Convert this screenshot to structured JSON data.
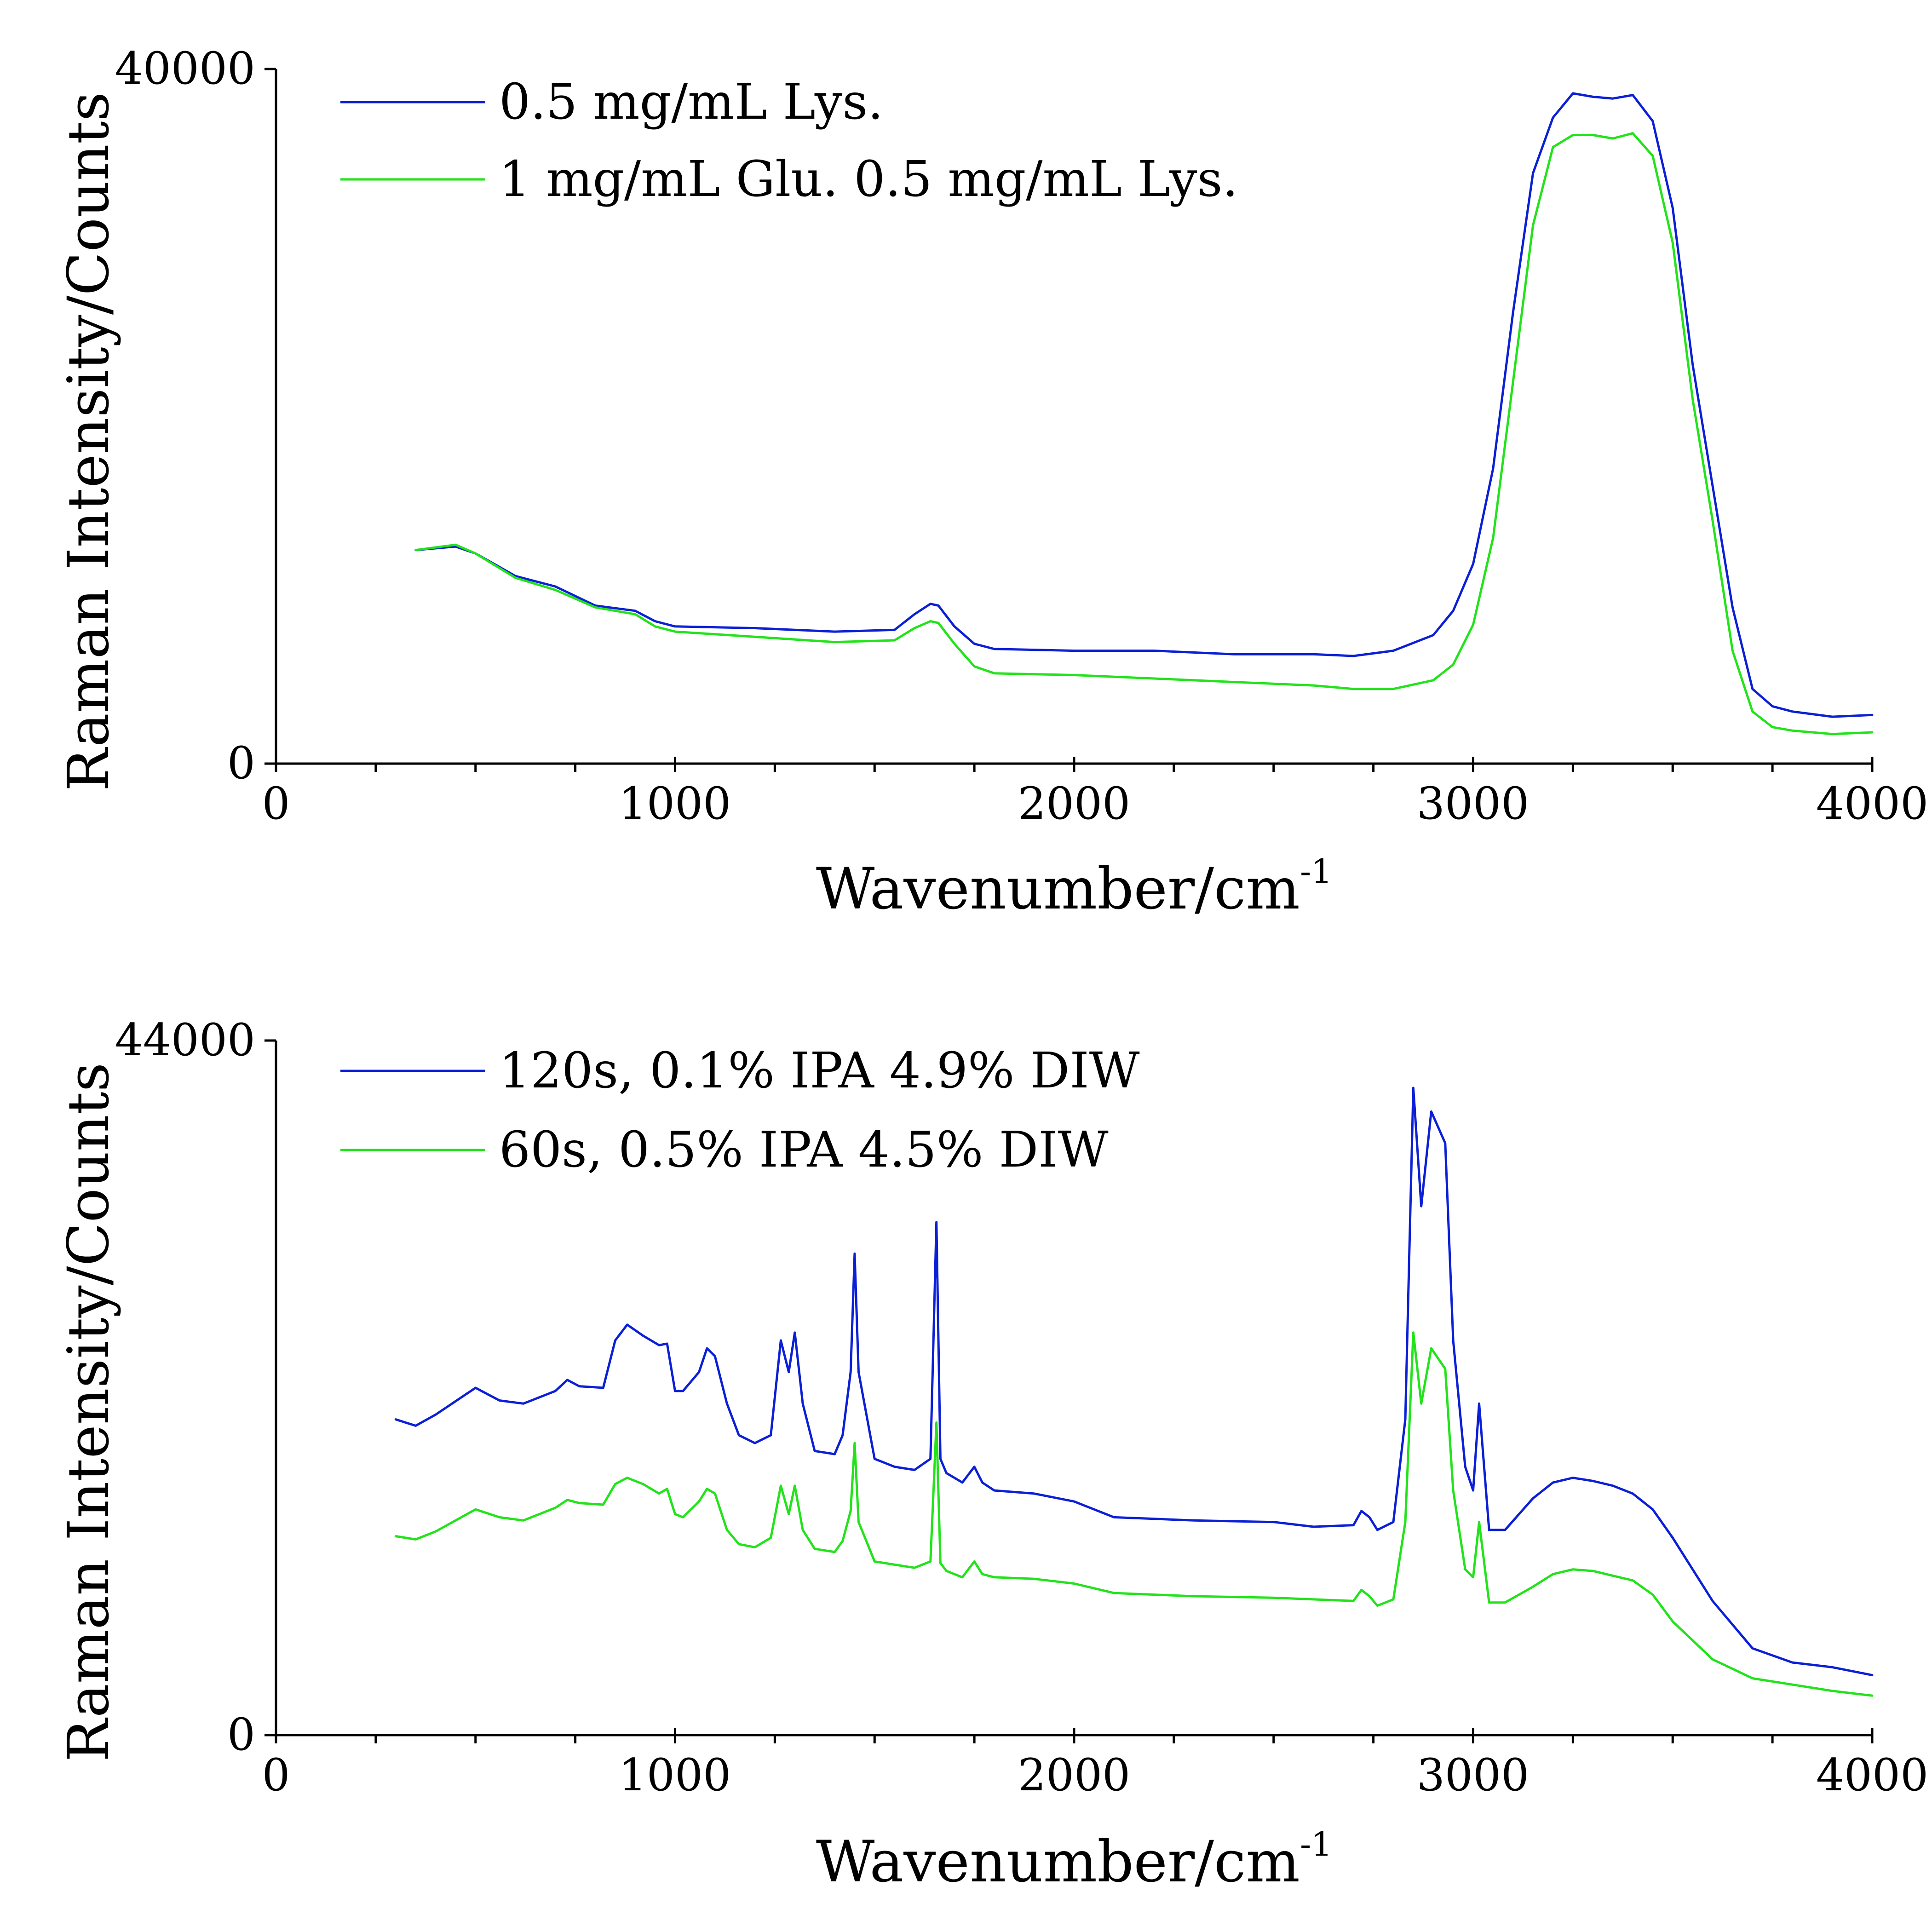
{
  "colors": {
    "series_1": "#0b1fd6",
    "series_2": "#22e31a",
    "axis": "#000000"
  },
  "chart_data": [
    {
      "type": "line",
      "title": "",
      "xlabel": "Wavenumber/cm",
      "xlabel_sup": "-1",
      "ylabel": "Raman Intensity/Counts",
      "xlim": [
        0,
        4000
      ],
      "ylim": [
        0,
        40000
      ],
      "x_ticks": [
        0,
        1000,
        2000,
        3000,
        4000
      ],
      "x_tick_labels": [
        "0",
        "1000",
        "2000",
        "3000",
        "4000"
      ],
      "y_ticks": [
        0,
        40000
      ],
      "y_tick_labels": [
        "0",
        "40000"
      ],
      "legend_position": "top-left",
      "series": [
        {
          "name": "0.5 mg/mL Lys.",
          "color": "#0b1fd6",
          "x": [
            350,
            450,
            500,
            600,
            700,
            800,
            900,
            950,
            1000,
            1200,
            1400,
            1550,
            1600,
            1640,
            1660,
            1700,
            1750,
            1800,
            2000,
            2200,
            2400,
            2600,
            2700,
            2800,
            2900,
            2950,
            3000,
            3050,
            3100,
            3150,
            3200,
            3250,
            3300,
            3350,
            3400,
            3450,
            3500,
            3550,
            3600,
            3650,
            3700,
            3750,
            3800,
            3900,
            4000
          ],
          "y": [
            12300,
            12500,
            12100,
            10800,
            10200,
            9100,
            8800,
            8200,
            7900,
            7800,
            7600,
            7700,
            8600,
            9200,
            9100,
            7900,
            6900,
            6600,
            6500,
            6500,
            6300,
            6300,
            6200,
            6500,
            7400,
            8800,
            11500,
            17000,
            26000,
            34000,
            37200,
            38600,
            38400,
            38300,
            38500,
            37000,
            32000,
            23000,
            16000,
            9000,
            4300,
            3300,
            3000,
            2700,
            2800
          ]
        },
        {
          "name": "1 mg/mL Glu. 0.5 mg/mL Lys.",
          "color": "#22e31a",
          "x": [
            350,
            450,
            500,
            600,
            700,
            800,
            900,
            950,
            1000,
            1200,
            1400,
            1550,
            1600,
            1640,
            1660,
            1700,
            1750,
            1800,
            2000,
            2200,
            2400,
            2600,
            2700,
            2800,
            2900,
            2950,
            3000,
            3050,
            3100,
            3150,
            3200,
            3250,
            3300,
            3350,
            3400,
            3450,
            3500,
            3550,
            3600,
            3650,
            3700,
            3750,
            3800,
            3900,
            4000
          ],
          "y": [
            12300,
            12600,
            12100,
            10700,
            10000,
            9000,
            8600,
            7900,
            7600,
            7300,
            7000,
            7100,
            7800,
            8200,
            8100,
            6900,
            5600,
            5200,
            5100,
            4900,
            4700,
            4500,
            4300,
            4300,
            4800,
            5700,
            8000,
            13000,
            22000,
            31000,
            35500,
            36200,
            36200,
            36000,
            36300,
            35000,
            30000,
            21000,
            14000,
            6500,
            3000,
            2100,
            1900,
            1700,
            1800
          ]
        }
      ]
    },
    {
      "type": "line",
      "title": "",
      "xlabel": "Wavenumber/cm",
      "xlabel_sup": "-1",
      "ylabel": "Raman Intensity/Counts",
      "xlim": [
        0,
        4000
      ],
      "ylim": [
        0,
        44000
      ],
      "x_ticks": [
        0,
        1000,
        2000,
        3000,
        4000
      ],
      "x_tick_labels": [
        "0",
        "1000",
        "2000",
        "3000",
        "4000"
      ],
      "y_ticks": [
        0,
        44000
      ],
      "y_tick_labels": [
        "0",
        "44000"
      ],
      "legend_position": "top-left",
      "series": [
        {
          "name": "120s, 0.1% IPA 4.9% DIW",
          "color": "#0b1fd6",
          "x": [
            300,
            350,
            400,
            500,
            560,
            620,
            700,
            730,
            760,
            820,
            850,
            880,
            920,
            960,
            980,
            1000,
            1020,
            1060,
            1080,
            1100,
            1130,
            1160,
            1200,
            1240,
            1265,
            1285,
            1300,
            1320,
            1350,
            1400,
            1420,
            1440,
            1450,
            1460,
            1500,
            1550,
            1600,
            1640,
            1655,
            1665,
            1680,
            1720,
            1750,
            1770,
            1800,
            1900,
            2000,
            2100,
            2200,
            2300,
            2500,
            2600,
            2700,
            2720,
            2740,
            2760,
            2800,
            2830,
            2850,
            2870,
            2895,
            2930,
            2950,
            2980,
            3000,
            3015,
            3040,
            3080,
            3150,
            3200,
            3250,
            3300,
            3350,
            3400,
            3450,
            3500,
            3600,
            3700,
            3800,
            3900,
            4000
          ],
          "y": [
            20000,
            19600,
            20300,
            22000,
            21200,
            21000,
            21800,
            22500,
            22100,
            22000,
            25000,
            26000,
            25300,
            24700,
            24800,
            21800,
            21800,
            23000,
            24500,
            24000,
            21000,
            19000,
            18500,
            19000,
            25000,
            23000,
            25500,
            21000,
            18000,
            17800,
            19000,
            23000,
            30500,
            23000,
            17500,
            17000,
            16800,
            17500,
            32500,
            17500,
            16600,
            16000,
            17000,
            16000,
            15500,
            15300,
            14800,
            13800,
            13700,
            13600,
            13500,
            13200,
            13300,
            14200,
            13800,
            13000,
            13500,
            20000,
            41000,
            33500,
            39500,
            37500,
            25000,
            17000,
            15500,
            21000,
            13000,
            13000,
            15000,
            16000,
            16300,
            16100,
            15800,
            15300,
            14300,
            12500,
            8500,
            5500,
            4600,
            4300,
            3800
          ]
        },
        {
          "name": "60s, 0.5% IPA 4.5% DIW",
          "color": "#22e31a",
          "x": [
            300,
            350,
            400,
            500,
            560,
            620,
            700,
            730,
            760,
            820,
            850,
            880,
            920,
            960,
            980,
            1000,
            1020,
            1060,
            1080,
            1100,
            1130,
            1160,
            1200,
            1240,
            1265,
            1285,
            1300,
            1320,
            1350,
            1400,
            1420,
            1440,
            1450,
            1460,
            1500,
            1550,
            1600,
            1640,
            1655,
            1665,
            1680,
            1720,
            1750,
            1770,
            1800,
            1900,
            2000,
            2100,
            2200,
            2300,
            2500,
            2600,
            2700,
            2720,
            2740,
            2760,
            2800,
            2830,
            2850,
            2870,
            2895,
            2930,
            2950,
            2980,
            3000,
            3015,
            3040,
            3080,
            3150,
            3200,
            3250,
            3300,
            3350,
            3400,
            3450,
            3500,
            3600,
            3700,
            3800,
            3900,
            4000
          ],
          "y": [
            12600,
            12400,
            12900,
            14300,
            13800,
            13600,
            14400,
            14900,
            14700,
            14600,
            15900,
            16300,
            15900,
            15300,
            15600,
            14000,
            13800,
            14800,
            15600,
            15300,
            13000,
            12100,
            11900,
            12500,
            15800,
            14000,
            15800,
            13000,
            11800,
            11600,
            12300,
            14200,
            18500,
            13500,
            11000,
            10800,
            10600,
            11000,
            19800,
            10900,
            10400,
            10000,
            11000,
            10200,
            10000,
            9900,
            9600,
            9000,
            8900,
            8800,
            8700,
            8600,
            8500,
            9200,
            8800,
            8200,
            8600,
            13500,
            25500,
            21000,
            24500,
            23200,
            15500,
            10500,
            10000,
            13500,
            8400,
            8400,
            9400,
            10200,
            10500,
            10400,
            10100,
            9800,
            8900,
            7200,
            4800,
            3600,
            3200,
            2800,
            2500
          ]
        }
      ]
    }
  ]
}
